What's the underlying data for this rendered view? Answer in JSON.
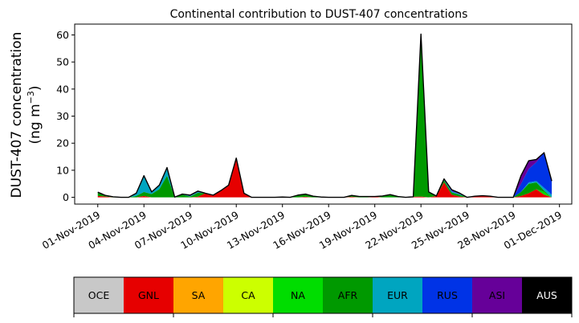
{
  "chart_data": {
    "type": "area",
    "stacked": true,
    "title": "Continental contribution to DUST-407 concentrations",
    "ylabel_line1": "DUST-407 concentration",
    "ylabel_line2_prefix": "(ng m",
    "ylabel_line2_exp": "−3",
    "ylabel_line2_suffix": ")",
    "xlabel": "",
    "ylim": [
      -2.5,
      64
    ],
    "yticks": [
      0,
      10,
      20,
      30,
      40,
      50,
      60
    ],
    "xlim_days": [
      -1.5,
      30.8
    ],
    "xticks": [
      {
        "day": 0,
        "label": "01-Nov-2019"
      },
      {
        "day": 3,
        "label": "04-Nov-2019"
      },
      {
        "day": 6,
        "label": "07-Nov-2019"
      },
      {
        "day": 9,
        "label": "10-Nov-2019"
      },
      {
        "day": 12,
        "label": "13-Nov-2019"
      },
      {
        "day": 15,
        "label": "16-Nov-2019"
      },
      {
        "day": 18,
        "label": "19-Nov-2019"
      },
      {
        "day": 21,
        "label": "22-Nov-2019"
      },
      {
        "day": 24,
        "label": "25-Nov-2019"
      },
      {
        "day": 27,
        "label": "28-Nov-2019"
      },
      {
        "day": 30,
        "label": "01-Dec-2019"
      }
    ],
    "x": [
      0,
      0.5,
      1,
      1.5,
      2,
      2.5,
      3,
      3.5,
      4,
      4.5,
      5,
      5.5,
      6,
      6.5,
      7,
      7.5,
      8,
      8.5,
      9,
      9.5,
      10,
      10.5,
      11,
      11.5,
      12,
      12.5,
      13,
      13.5,
      14,
      14.5,
      15,
      15.5,
      16,
      16.5,
      17,
      17.5,
      18,
      18.5,
      19,
      19.5,
      20,
      20.5,
      21,
      21.5,
      22,
      22.5,
      23,
      23.5,
      24,
      24.5,
      25,
      25.5,
      26,
      26.5,
      27,
      27.5,
      28,
      28.5,
      29,
      29.5
    ],
    "series": [
      {
        "name": "OCE",
        "color": "#c8c8c8",
        "values": [
          0,
          0,
          0,
          0,
          0,
          0,
          0,
          0,
          0,
          0,
          0,
          0,
          0,
          0,
          0,
          0,
          0,
          0,
          0,
          0,
          0,
          0,
          0,
          0,
          0,
          0,
          0,
          0,
          0,
          0,
          0,
          0,
          0,
          0,
          0,
          0,
          0,
          0,
          0,
          0,
          0,
          0,
          0,
          0,
          0,
          0,
          0,
          0,
          0,
          0,
          0,
          0,
          0,
          0,
          0,
          0,
          0,
          0,
          0,
          0
        ]
      },
      {
        "name": "GNL",
        "color": "#e60000",
        "values": [
          0.5,
          0.3,
          0,
          0,
          0,
          0,
          0.5,
          0,
          0,
          0,
          0,
          0,
          0,
          0.2,
          1.5,
          0.8,
          2.5,
          4.5,
          14.5,
          1.5,
          0,
          0,
          0,
          0,
          0,
          0,
          0,
          0.2,
          0,
          0,
          0,
          0,
          0,
          0.2,
          0,
          0,
          0.3,
          0,
          0,
          0,
          0,
          0.2,
          0.3,
          0,
          0.5,
          5.5,
          1.0,
          0.3,
          0,
          0.3,
          0.6,
          0.2,
          0,
          0,
          0,
          0.5,
          1.5,
          3.0,
          1.0,
          0
        ]
      },
      {
        "name": "SA",
        "color": "#ffa500",
        "values": [
          0,
          0,
          0,
          0,
          0,
          0,
          0,
          0,
          0,
          0,
          0,
          0,
          0,
          0,
          0,
          0,
          0,
          0,
          0,
          0,
          0,
          0,
          0,
          0,
          0,
          0,
          0,
          0,
          0,
          0,
          0,
          0,
          0,
          0,
          0,
          0,
          0,
          0,
          0,
          0,
          0,
          0,
          0,
          0,
          0,
          0,
          0,
          0,
          0,
          0,
          0,
          0,
          0,
          0,
          0,
          0,
          0,
          0,
          0,
          0
        ]
      },
      {
        "name": "CA",
        "color": "#ccff00",
        "values": [
          0,
          0,
          0,
          0,
          0,
          0,
          0,
          0,
          0,
          0,
          0,
          0,
          0,
          0,
          0,
          0,
          0,
          0,
          0,
          0,
          0,
          0,
          0,
          0,
          0,
          0,
          0,
          0,
          0,
          0,
          0,
          0,
          0,
          0,
          0,
          0,
          0,
          0,
          0,
          0,
          0,
          0,
          0,
          0,
          0,
          0,
          0,
          0,
          0,
          0,
          0,
          0,
          0,
          0,
          0,
          0,
          0,
          0,
          0,
          0
        ]
      },
      {
        "name": "NA",
        "color": "#00dd00",
        "values": [
          0,
          0,
          0,
          0,
          0,
          0,
          0,
          0,
          0,
          0,
          0,
          0,
          0,
          0,
          0,
          0,
          0,
          0,
          0,
          0,
          0,
          0,
          0,
          0,
          0,
          0,
          0,
          0,
          0,
          0,
          0,
          0,
          0,
          0,
          0,
          0,
          0,
          0,
          0,
          0,
          0,
          0,
          0,
          0,
          0,
          0,
          0,
          0,
          0,
          0,
          0,
          0,
          0,
          0,
          0,
          0,
          0,
          0,
          1.0,
          0
        ]
      },
      {
        "name": "AFR",
        "color": "#009900",
        "values": [
          1.2,
          0.2,
          0.1,
          0,
          0,
          0.5,
          1.5,
          1.2,
          3.0,
          8.0,
          0.1,
          1.0,
          0.3,
          1.5,
          0,
          0,
          0,
          0,
          0,
          0,
          0,
          0,
          0,
          0,
          0.1,
          0,
          0.8,
          1.0,
          0.4,
          0.1,
          0,
          0,
          0,
          0.5,
          0.3,
          0.3,
          0,
          0.5,
          1.0,
          0.3,
          0,
          0,
          60.0,
          2.0,
          0,
          0.8,
          0.8,
          0.7,
          0,
          0.1,
          0,
          0.2,
          0,
          0,
          0,
          1.5,
          3.5,
          2.5,
          0.5,
          0
        ]
      },
      {
        "name": "EUR",
        "color": "#00a5c0",
        "values": [
          0.2,
          0.2,
          0.1,
          0,
          0,
          1.0,
          6.0,
          0.8,
          1.5,
          3.0,
          0,
          0.2,
          0.2,
          0.3,
          0,
          0,
          0,
          0,
          0,
          0,
          0,
          0,
          0,
          0,
          0,
          0,
          0,
          0,
          0,
          0,
          0,
          0,
          0,
          0,
          0,
          0,
          0,
          0,
          0,
          0,
          0,
          0,
          0,
          0,
          0,
          0.2,
          0.3,
          0.3,
          0,
          0,
          0,
          0,
          0,
          0,
          0,
          0,
          0.5,
          0.5,
          1.0,
          1.0
        ]
      },
      {
        "name": "RUS",
        "color": "#0033e6",
        "values": [
          0,
          0,
          0,
          0,
          0,
          0,
          0,
          0,
          0,
          0,
          0,
          0,
          0,
          0,
          0,
          0,
          0,
          0,
          0,
          0,
          0,
          0,
          0,
          0,
          0,
          0,
          0,
          0,
          0,
          0,
          0,
          0,
          0,
          0,
          0,
          0,
          0,
          0,
          0,
          0,
          0,
          0,
          0,
          0,
          0,
          0,
          0.3,
          0,
          0,
          0,
          0,
          0,
          0,
          0,
          0,
          3.0,
          5.0,
          7.0,
          13.0,
          5.0
        ]
      },
      {
        "name": "ASI",
        "color": "#660099",
        "values": [
          0,
          0,
          0,
          0,
          0,
          0,
          0,
          0,
          0,
          0,
          0,
          0,
          0.3,
          0.3,
          0,
          0,
          0,
          0,
          0,
          0,
          0,
          0,
          0,
          0,
          0,
          0,
          0,
          0,
          0,
          0,
          0,
          0,
          0,
          0,
          0,
          0,
          0,
          0,
          0,
          0,
          0,
          0,
          0,
          0,
          0,
          0.3,
          0.4,
          0.3,
          0,
          0,
          0,
          0,
          0,
          0,
          0,
          3.0,
          3.0,
          1.0,
          0,
          0
        ]
      },
      {
        "name": "AUS",
        "color": "#000000",
        "values": [
          0,
          0,
          0,
          0,
          0,
          0,
          0,
          0,
          0,
          0,
          0,
          0,
          0,
          0,
          0,
          0,
          0,
          0,
          0,
          0,
          0,
          0,
          0,
          0,
          0,
          0,
          0,
          0,
          0,
          0,
          0,
          0,
          0,
          0,
          0,
          0,
          0,
          0,
          0,
          0,
          0,
          0,
          0,
          0,
          0,
          0,
          0,
          0,
          0,
          0,
          0,
          0,
          0,
          0,
          0,
          0,
          0,
          0,
          0,
          0
        ]
      }
    ],
    "legend": {
      "placement": "bottom",
      "entries": [
        {
          "name": "OCE",
          "color": "#c8c8c8",
          "text_color": "#000000"
        },
        {
          "name": "GNL",
          "color": "#e60000",
          "text_color": "#000000"
        },
        {
          "name": "SA",
          "color": "#ffa500",
          "text_color": "#000000"
        },
        {
          "name": "CA",
          "color": "#ccff00",
          "text_color": "#000000"
        },
        {
          "name": "NA",
          "color": "#00dd00",
          "text_color": "#000000"
        },
        {
          "name": "AFR",
          "color": "#009900",
          "text_color": "#000000"
        },
        {
          "name": "EUR",
          "color": "#00a5c0",
          "text_color": "#000000"
        },
        {
          "name": "RUS",
          "color": "#0033e6",
          "text_color": "#000000"
        },
        {
          "name": "ASI",
          "color": "#660099",
          "text_color": "#000000"
        },
        {
          "name": "AUS",
          "color": "#000000",
          "text_color": "#ffffff"
        }
      ]
    },
    "grid": false
  }
}
